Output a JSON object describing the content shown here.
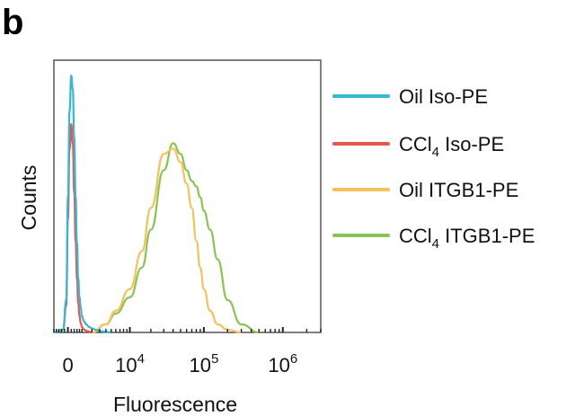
{
  "figure": {
    "panel_label": "b"
  },
  "chart_data": {
    "type": "line",
    "title": "",
    "xlabel": "Fluorescence",
    "ylabel": "Counts",
    "x_scale": "biexponential",
    "x_ticks": [
      {
        "value": 0,
        "base": "0",
        "exp": ""
      },
      {
        "value": 10000,
        "base": "10",
        "exp": "4"
      },
      {
        "value": 100000,
        "base": "10",
        "exp": "5"
      },
      {
        "value": 1000000,
        "base": "10",
        "exp": "6"
      }
    ],
    "xlim": [
      -1000,
      3000000
    ],
    "ylim": [
      0,
      1
    ],
    "legend_position": "right",
    "series": [
      {
        "name": "Oil Iso-PE",
        "label_main": "Oil Iso-PE",
        "label_sub": "",
        "label_rest": "",
        "color": "#34b8d6",
        "x": [
          -1000,
          -300,
          -100,
          0,
          100,
          200,
          300,
          400,
          500,
          600,
          700,
          800,
          900,
          1000,
          1200,
          1400,
          1700,
          2000,
          2500,
          3000,
          4000,
          5000
        ],
        "y": [
          0,
          0.01,
          0.12,
          0.5,
          0.82,
          0.95,
          0.9,
          0.72,
          0.5,
          0.33,
          0.2,
          0.13,
          0.09,
          0.06,
          0.04,
          0.03,
          0.02,
          0.015,
          0.01,
          0.005,
          0.002,
          0
        ]
      },
      {
        "name": "CCl4 Iso-PE",
        "label_main": "CCl",
        "label_sub": "4",
        "label_rest": " Iso-PE",
        "color": "#e8574d",
        "x": [
          -1000,
          -300,
          -100,
          0,
          100,
          200,
          300,
          400,
          500,
          600,
          700,
          800,
          900,
          1000,
          1200,
          1500,
          2000
        ],
        "y": [
          0,
          0.01,
          0.1,
          0.42,
          0.68,
          0.77,
          0.7,
          0.52,
          0.34,
          0.2,
          0.11,
          0.06,
          0.035,
          0.02,
          0.01,
          0.005,
          0
        ]
      },
      {
        "name": "Oil ITGB1-PE",
        "label_main": "Oil ITGB1-PE",
        "label_sub": "",
        "label_rest": "",
        "color": "#f6c15a",
        "x": [
          2000,
          4000,
          6000,
          10000,
          15000,
          20000,
          30000,
          40000,
          50000,
          60000,
          70000,
          80000,
          90000,
          100000,
          120000,
          150000,
          200000,
          300000
        ],
        "y": [
          0,
          0.03,
          0.08,
          0.16,
          0.3,
          0.46,
          0.66,
          0.68,
          0.63,
          0.55,
          0.46,
          0.34,
          0.24,
          0.16,
          0.08,
          0.03,
          0.01,
          0
        ]
      },
      {
        "name": "CCl4 ITGB1-PE",
        "label_main": "CCl",
        "label_sub": "4",
        "label_rest": " ITGB1-PE",
        "color": "#86c651",
        "x": [
          2000,
          4000,
          6000,
          10000,
          15000,
          20000,
          30000,
          40000,
          50000,
          60000,
          70000,
          80000,
          90000,
          100000,
          120000,
          150000,
          200000,
          300000,
          500000
        ],
        "y": [
          0,
          0.03,
          0.07,
          0.13,
          0.24,
          0.38,
          0.6,
          0.7,
          0.66,
          0.6,
          0.56,
          0.54,
          0.5,
          0.45,
          0.38,
          0.27,
          0.12,
          0.03,
          0
        ]
      }
    ]
  }
}
